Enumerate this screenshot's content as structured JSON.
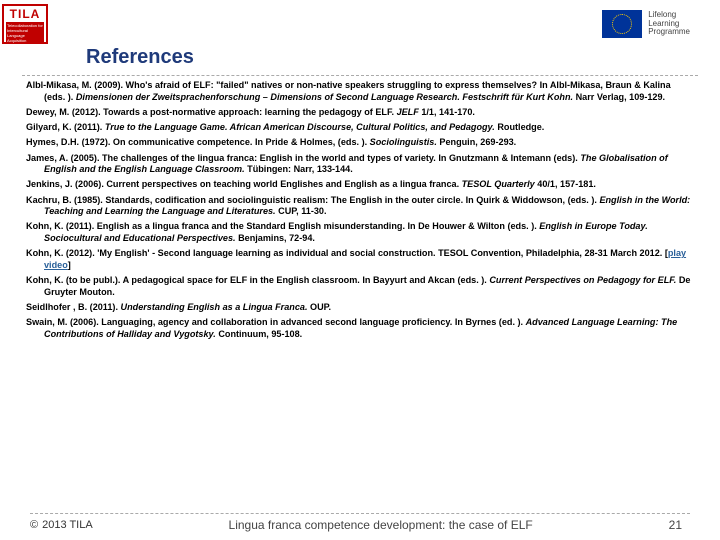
{
  "header": {
    "logo_left_text": "TILA",
    "logo_left_sub": "Telecollaboration for Intercultural Language Acquisition",
    "programme_line1": "Lifelong",
    "programme_line2": "Learning",
    "programme_line3": "Programme"
  },
  "title": "References",
  "references": [
    {
      "html": "Albl-Mikasa, M. (2009). Who's afraid of ELF: \"failed\" natives or non-native speakers struggling to express themselves? In Albl-Mikasa, Braun & Kalina (eds. ). <span class='ital'>Dimensionen der Zweitsprachenforschung – Dimensions of Second Language Research. Festschrift für Kurt Kohn.</span> Narr Verlag, 109-129."
    },
    {
      "html": "Dewey, M. (2012). Towards a post-normative approach: learning the pedagogy of ELF. <span class='ital'>JELF</span> 1/1, 141-170."
    },
    {
      "html": "Gilyard, K. (2011). <span class='ital'>True to the Language Game. African American Discourse, Cultural Politics, and Pedagogy.</span> Routledge."
    },
    {
      "html": "Hymes, D.H. (1972). On communicative competence. In Pride & Holmes, (eds. ). <span class='ital'>Sociolinguistis.</span> Penguin, 269-293."
    },
    {
      "html": "James, A. (2005). The challenges of the lingua franca: English in the world and types of variety. In Gnutzmann & Intemann (eds). <span class='ital'>The Globalisation of English and the English Language Classroom.</span> Tübingen: Narr, 133-144."
    },
    {
      "html": "Jenkins, J. (2006). Current perspectives on teaching world Englishes and English as a lingua franca. <span class='ital'>TESOL Quarterly</span> 40/1, 157-181."
    },
    {
      "html": "Kachru, B. (1985). Standards, codification and sociolinguistic realism: The English in the outer circle. In Quirk & Widdowson, (eds. ). <span class='ital'>English in the World: Teaching and Learning the Language and Literatures.</span> CUP, 11-30."
    },
    {
      "html": "Kohn, K. (2011). English as a lingua franca and the Standard English misunderstanding. In De Houwer & Wilton (eds. ). <span class='ital'>English in Europe Today. Sociocultural and Educational Perspectives.</span> Benjamins, 72-94."
    },
    {
      "html": "Kohn, K. (2012). 'My English' - Second language learning as individual and social construction. TESOL Convention, Philadelphia, 28-31 March 2012. [<span class='link'>play video</span>]"
    },
    {
      "html": "Kohn, K. (to be publ.). A pedagogical space for ELF in the English classroom. In Bayyurt and Akcan (eds. ). <span class='ital'>Current Perspectives on Pedagogy for ELF.</span> De Gruyter Mouton."
    },
    {
      "html": "Seidlhofer , B. (2011). <span class='ital'>Understanding English as a Lingua Franca.</span> OUP."
    },
    {
      "html": "Swain, M. (2006). Languaging, agency and collaboration in advanced second language proficiency. In Byrnes (ed. ). <span class='ital'>Advanced Language Learning: The Contributions of Halliday and Vygotsky.</span> Continuum, 95-108."
    }
  ],
  "footer": {
    "copyright_symbol": "©",
    "copyright_text": "2013 TILA",
    "center_text": "Lingua franca competence development: the case of ELF",
    "page_number": "21"
  },
  "colors": {
    "title_color": "#1f3a7a",
    "brand_red": "#c00000",
    "eu_blue": "#003399",
    "link_color": "#2a6099"
  }
}
